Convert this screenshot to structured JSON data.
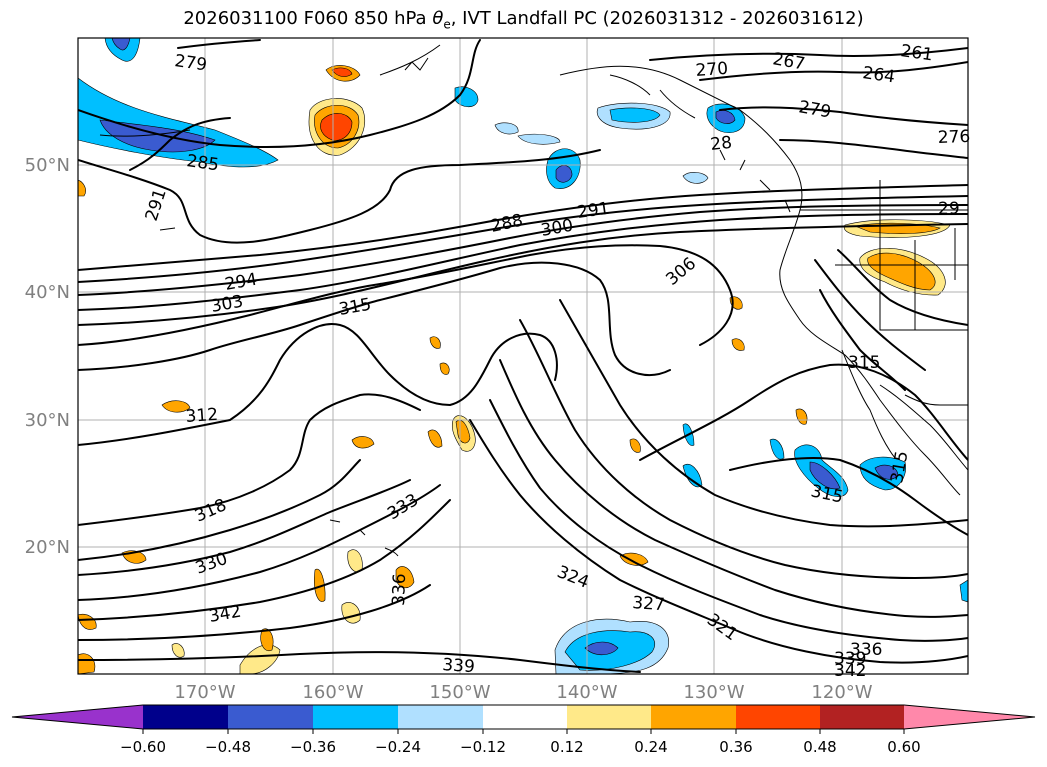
{
  "title": {
    "prefix": "2026031100 F060 850 hPa ",
    "symbol": "θ",
    "subscript": "e",
    "suffix": ", IVT Landfall PC (2026031312 - 2026031612)"
  },
  "map": {
    "latitude_labels": [
      "50°N",
      "40°N",
      "30°N",
      "20°N"
    ],
    "longitude_labels": [
      "170°W",
      "160°W",
      "150°W",
      "140°W",
      "130°W",
      "120°W"
    ]
  },
  "contour_labels": [
    "279",
    "270",
    "267",
    "264",
    "261",
    "285",
    "279",
    "276",
    "28",
    "291",
    "288",
    "300",
    "291",
    "294",
    "303",
    "315",
    "306",
    "312",
    "318",
    "333",
    "330",
    "342",
    "336",
    "324",
    "327",
    "321",
    "339",
    "315",
    "315",
    "315",
    "336",
    "339",
    "342",
    "29"
  ],
  "colorbar": {
    "tick_labels": [
      "−0.60",
      "−0.48",
      "−0.36",
      "−0.24",
      "−0.12",
      "0.12",
      "0.24",
      "0.36",
      "0.48",
      "0.60"
    ],
    "colors": [
      "#9932cc",
      "#00008b",
      "#3a5bd0",
      "#00bfff",
      "#b0e0ff",
      "#ffffff",
      "#ffe989",
      "#ffa500",
      "#ff4500",
      "#b22222",
      "#ff88aa"
    ]
  }
}
